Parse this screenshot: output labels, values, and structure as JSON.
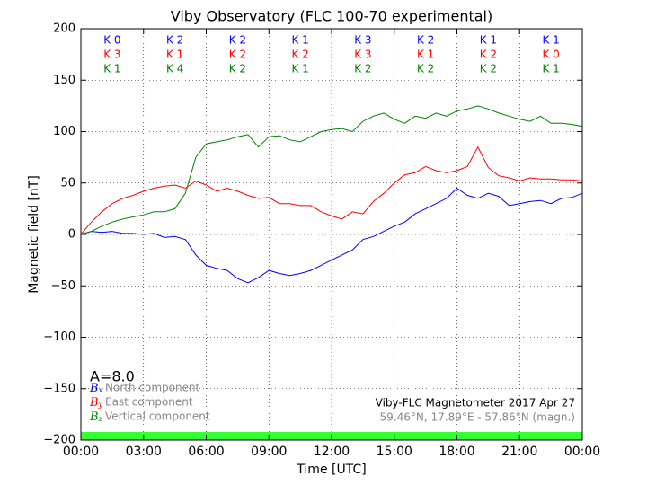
{
  "chart_data": {
    "type": "line",
    "title": "Viby Observatory (FLC 100-70 experimental)",
    "x_label": "Time [UTC]",
    "y_label": "Magnetic field [nT]",
    "xlim": [
      0,
      24
    ],
    "xticks": [
      {
        "value": 0,
        "label": "00:00"
      },
      {
        "value": 3,
        "label": "03:00"
      },
      {
        "value": 6,
        "label": "06:00"
      },
      {
        "value": 9,
        "label": "09:00"
      },
      {
        "value": 12,
        "label": "12:00"
      },
      {
        "value": 15,
        "label": "15:00"
      },
      {
        "value": 18,
        "label": "18:00"
      },
      {
        "value": 21,
        "label": "21:00"
      },
      {
        "value": 24,
        "label": "00:00"
      }
    ],
    "ylim": [
      -200,
      200
    ],
    "yticks": [
      {
        "value": -200,
        "label": "−200"
      },
      {
        "value": -150,
        "label": "−150"
      },
      {
        "value": -100,
        "label": "−100"
      },
      {
        "value": -50,
        "label": "−50"
      },
      0,
      50,
      100,
      150,
      200
    ],
    "grid": true,
    "x": [
      0,
      0.5,
      1,
      1.5,
      2,
      2.5,
      3,
      3.5,
      4,
      4.5,
      5,
      5.5,
      6,
      6.5,
      7,
      7.5,
      8,
      8.5,
      9,
      9.5,
      10,
      10.5,
      11,
      11.5,
      12,
      12.5,
      13,
      13.5,
      14,
      14.5,
      15,
      15.5,
      16,
      16.5,
      17,
      17.5,
      18,
      18.5,
      19,
      19.5,
      20,
      20.5,
      21,
      21.5,
      22,
      22.5,
      23,
      23.5,
      24
    ],
    "k_x": [
      1.5,
      4.5,
      7.5,
      10.5,
      13.5,
      16.5,
      19.5,
      22.5
    ],
    "series": [
      {
        "name": "North component",
        "symbol": "B",
        "subscript": "x",
        "color": "#0000ff",
        "k_labels": [
          "K 0",
          "K 2",
          "K 2",
          "K 1",
          "K 3",
          "K 2",
          "K 1",
          "K 1"
        ],
        "values": [
          0,
          3,
          2,
          3,
          1,
          1,
          0,
          1,
          -3,
          -2,
          -5,
          -20,
          -30,
          -33,
          -35,
          -43,
          -47,
          -42,
          -35,
          -38,
          -40,
          -38,
          -35,
          -30,
          -25,
          -20,
          -15,
          -5,
          -2,
          3,
          8,
          12,
          20,
          25,
          30,
          35,
          45,
          38,
          35,
          40,
          37,
          28,
          30,
          32,
          33,
          30,
          35,
          36,
          40
        ]
      },
      {
        "name": "East component",
        "symbol": "B",
        "subscript": "y",
        "color": "#ff0000",
        "k_labels": [
          "K 3",
          "K 1",
          "K 2",
          "K 2",
          "K 3",
          "K 1",
          "K 2",
          "K 0"
        ],
        "values": [
          0,
          12,
          22,
          30,
          35,
          38,
          42,
          45,
          47,
          48,
          45,
          52,
          48,
          42,
          45,
          42,
          38,
          35,
          36,
          30,
          30,
          28,
          28,
          22,
          18,
          15,
          22,
          20,
          32,
          40,
          50,
          58,
          60,
          66,
          62,
          60,
          62,
          66,
          85,
          65,
          57,
          55,
          52,
          55,
          54,
          54,
          53,
          53,
          52
        ]
      },
      {
        "name": "Vertical component",
        "symbol": "B",
        "subscript": "z",
        "color": "#008000",
        "k_labels": [
          "K 1",
          "K 4",
          "K 2",
          "K 1",
          "K 2",
          "K 2",
          "K 2",
          "K 1"
        ],
        "values": [
          0,
          3,
          8,
          12,
          15,
          17,
          19,
          22,
          22,
          25,
          40,
          75,
          88,
          90,
          92,
          95,
          97,
          85,
          95,
          96,
          92,
          90,
          95,
          100,
          102,
          103,
          100,
          110,
          115,
          118,
          112,
          108,
          115,
          113,
          118,
          115,
          120,
          122,
          125,
          122,
          118,
          115,
          112,
          110,
          115,
          108,
          108,
          107,
          105
        ]
      }
    ],
    "activity_label": "A=8.0",
    "instrument_label": "Viby-FLC Magnetometer 2017 Apr 27",
    "location_label": "59.46°N, 17.89°E - 57.86°N (magn.)",
    "status_bar_color": "#33ff33"
  }
}
